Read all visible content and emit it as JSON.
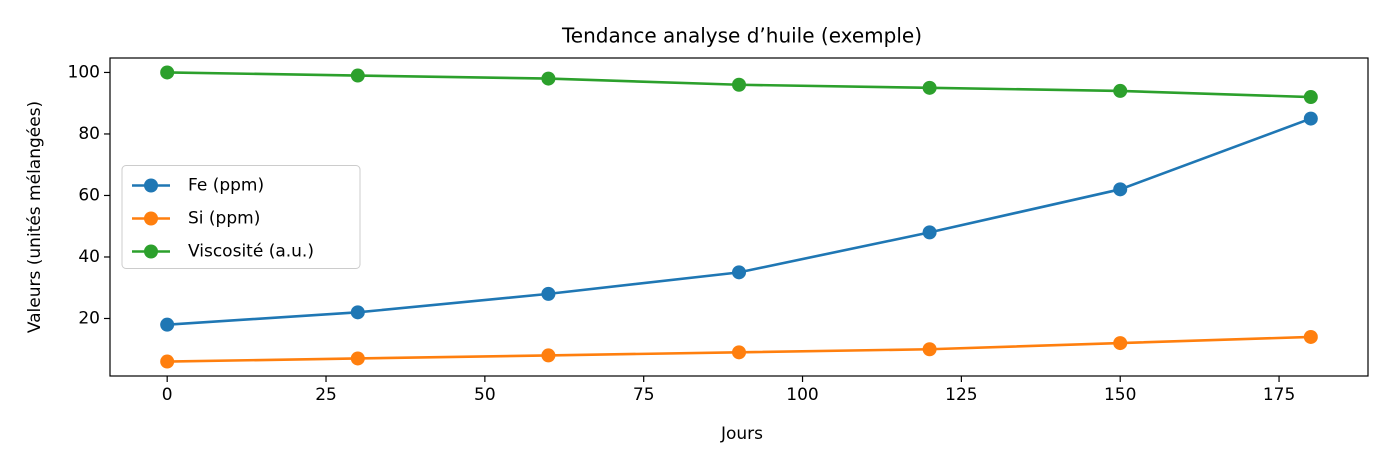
{
  "chart_data": {
    "type": "line",
    "title": "Tendance analyse d’huile (exemple)",
    "x_label": "Jours",
    "y_label": "Valeurs (unités mélangées)",
    "x": [
      0,
      30,
      60,
      90,
      120,
      150,
      180
    ],
    "series": [
      {
        "name": "Fe (ppm)",
        "color": "#1f77b4",
        "values": [
          18,
          22,
          28,
          35,
          48,
          62,
          85
        ]
      },
      {
        "name": "Si (ppm)",
        "color": "#ff7f0e",
        "values": [
          6,
          7,
          8,
          9,
          10,
          12,
          14
        ]
      },
      {
        "name": "Viscosité (a.u.)",
        "color": "#2ca02c",
        "values": [
          100,
          99,
          98,
          96,
          95,
          94,
          92
        ]
      }
    ],
    "xlim": [
      -9,
      189
    ],
    "xticks": [
      0,
      25,
      50,
      75,
      100,
      125,
      150,
      175
    ],
    "ylim": [
      1.3,
      104.7
    ],
    "yticks": [
      20,
      40,
      60,
      80,
      100
    ],
    "grid": false,
    "legend": "center left"
  }
}
